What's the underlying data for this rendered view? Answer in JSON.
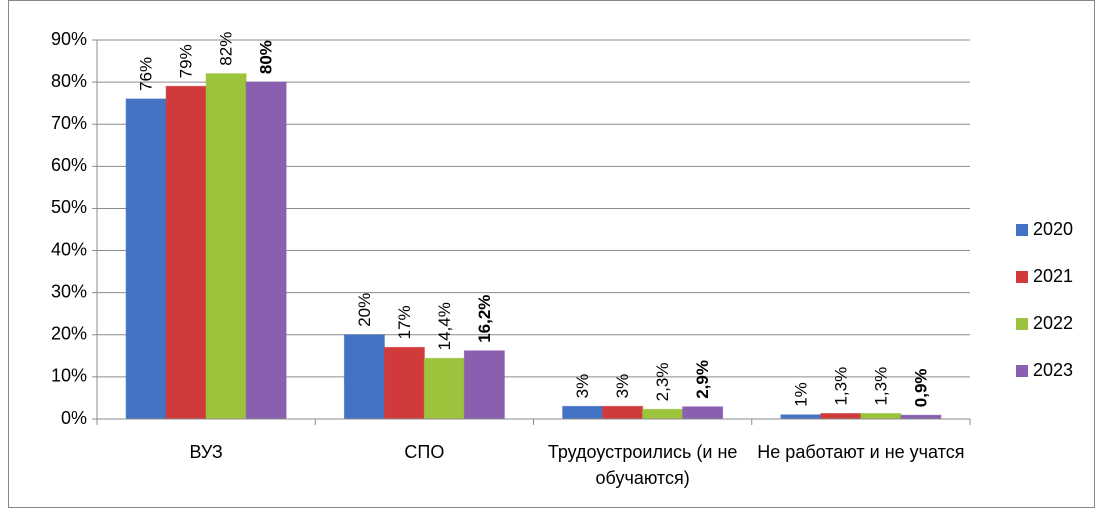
{
  "chart_data": {
    "type": "bar",
    "categories": [
      "ВУЗ",
      "СПО",
      "Трудоустроились (и не обучаются)",
      "Не работают и не учатся"
    ],
    "series": [
      {
        "name": "2020",
        "color": "#4472c4",
        "values": [
          76,
          20,
          3,
          1
        ],
        "value_labels": [
          "76%",
          "20%",
          "3%",
          "1%"
        ]
      },
      {
        "name": "2021",
        "color": "#d03a3a",
        "values": [
          79,
          17,
          3,
          1.3
        ],
        "value_labels": [
          "79%",
          "17%",
          "3%",
          "1,3%"
        ]
      },
      {
        "name": "2022",
        "color": "#9bc43c",
        "values": [
          82,
          14.4,
          2.3,
          1.3
        ],
        "value_labels": [
          "82%",
          "14,4%",
          "2,3%",
          "1,3%"
        ]
      },
      {
        "name": "2023",
        "color": "#8a5fb0",
        "values": [
          80,
          16.2,
          2.9,
          0.9
        ],
        "value_labels": [
          "80%",
          "16,2%",
          "2,9%",
          "0,9%"
        ],
        "bold_labels": true
      }
    ],
    "ylim": [
      0,
      90
    ],
    "yticks": [
      {
        "value": 0,
        "label": "0%"
      },
      {
        "value": 10,
        "label": "10%"
      },
      {
        "value": 20,
        "label": "20%"
      },
      {
        "value": 30,
        "label": "30%"
      },
      {
        "value": 40,
        "label": "40%"
      },
      {
        "value": 50,
        "label": "50%"
      },
      {
        "value": 60,
        "label": "60%"
      },
      {
        "value": 70,
        "label": "70%"
      },
      {
        "value": 80,
        "label": "80%"
      },
      {
        "value": 90,
        "label": "90%"
      }
    ],
    "grid": true,
    "legend": "right"
  }
}
